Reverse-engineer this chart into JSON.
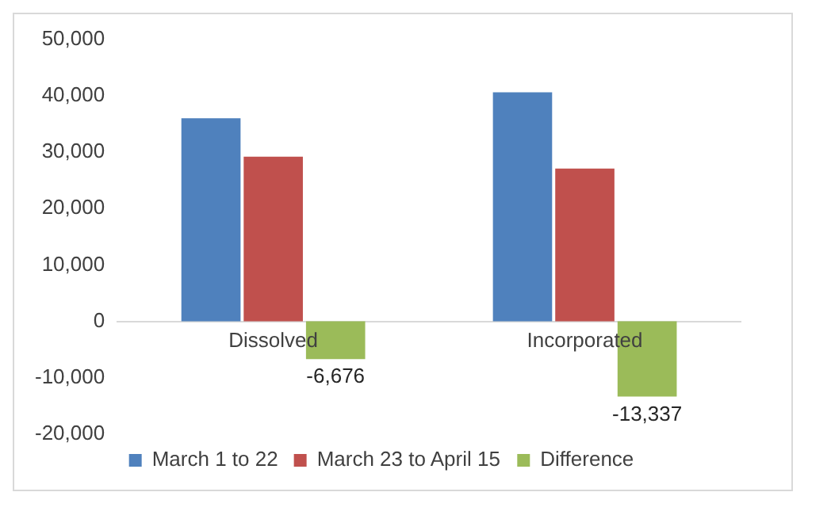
{
  "chart_data": {
    "type": "bar",
    "categories": [
      "Dissolved",
      "Incorporated"
    ],
    "series": [
      {
        "name": "March 1 to 22",
        "color": "#4f81bd",
        "values": [
          36000,
          40600
        ]
      },
      {
        "name": "March 23 to April 15",
        "color": "#c0504d",
        "values": [
          29200,
          27100
        ]
      },
      {
        "name": "Difference",
        "color": "#9bbb59",
        "values": [
          -6676,
          -13337
        ],
        "value_labels": [
          "-6,676",
          "-13,337"
        ]
      }
    ],
    "ylim": [
      -20000,
      50000
    ],
    "yticks": [
      {
        "value": -20000,
        "label": "-20,000"
      },
      {
        "value": -10000,
        "label": "-10,000"
      },
      {
        "value": 0,
        "label": "0"
      },
      {
        "value": 10000,
        "label": "10,000"
      },
      {
        "value": 20000,
        "label": "20,000"
      },
      {
        "value": 30000,
        "label": "30,000"
      },
      {
        "value": 40000,
        "label": "40,000"
      },
      {
        "value": 50000,
        "label": "50,000"
      }
    ],
    "grid": false,
    "legend": "bottom"
  }
}
